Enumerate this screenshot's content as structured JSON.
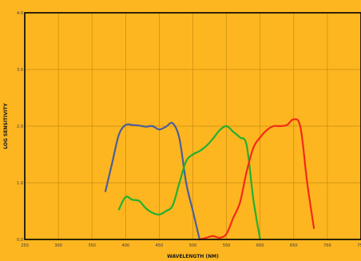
{
  "chart_data": {
    "type": "line",
    "title": "",
    "xlabel": "WAVELENGTH (NM)",
    "ylabel": "LOG SENSITIVITY",
    "xlim": [
      250,
      750
    ],
    "ylim": [
      0,
      4
    ],
    "x_ticks": [
      "250",
      "300",
      "350",
      "400",
      "450",
      "500",
      "550",
      "600",
      "650",
      "700",
      "750"
    ],
    "y_ticks": [
      "0.0",
      "1.0",
      "2.0",
      "3.0",
      "4.0"
    ],
    "grid": true,
    "legend": "none",
    "series": [
      {
        "color": "#4A5F9A",
        "x": [
          370,
          380,
          390,
          400,
          410,
          420,
          430,
          440,
          450,
          460,
          470,
          480,
          490,
          500,
          510
        ],
        "y": [
          0.85,
          1.35,
          1.85,
          2.02,
          2.02,
          2.01,
          1.99,
          2.0,
          1.94,
          1.99,
          2.05,
          1.78,
          1.0,
          0.5,
          0.0
        ]
      },
      {
        "color": "#22B030",
        "x": [
          390,
          400,
          410,
          420,
          430,
          440,
          450,
          460,
          470,
          480,
          490,
          500,
          510,
          520,
          530,
          540,
          550,
          560,
          570,
          580,
          590,
          600
        ],
        "y": [
          0.53,
          0.75,
          0.7,
          0.68,
          0.55,
          0.47,
          0.44,
          0.5,
          0.6,
          1.0,
          1.38,
          1.5,
          1.56,
          1.65,
          1.78,
          1.93,
          2.0,
          1.9,
          1.8,
          1.66,
          0.7,
          0.0
        ]
      },
      {
        "color": "#F22A18",
        "x": [
          510,
          520,
          530,
          540,
          550,
          560,
          570,
          580,
          590,
          600,
          610,
          620,
          630,
          640,
          650,
          660,
          670,
          680
        ],
        "y": [
          0.0,
          0.03,
          0.06,
          0.03,
          0.1,
          0.38,
          0.65,
          1.2,
          1.62,
          1.8,
          1.93,
          2.0,
          2.0,
          2.02,
          2.12,
          1.98,
          1.0,
          0.2
        ]
      }
    ]
  }
}
